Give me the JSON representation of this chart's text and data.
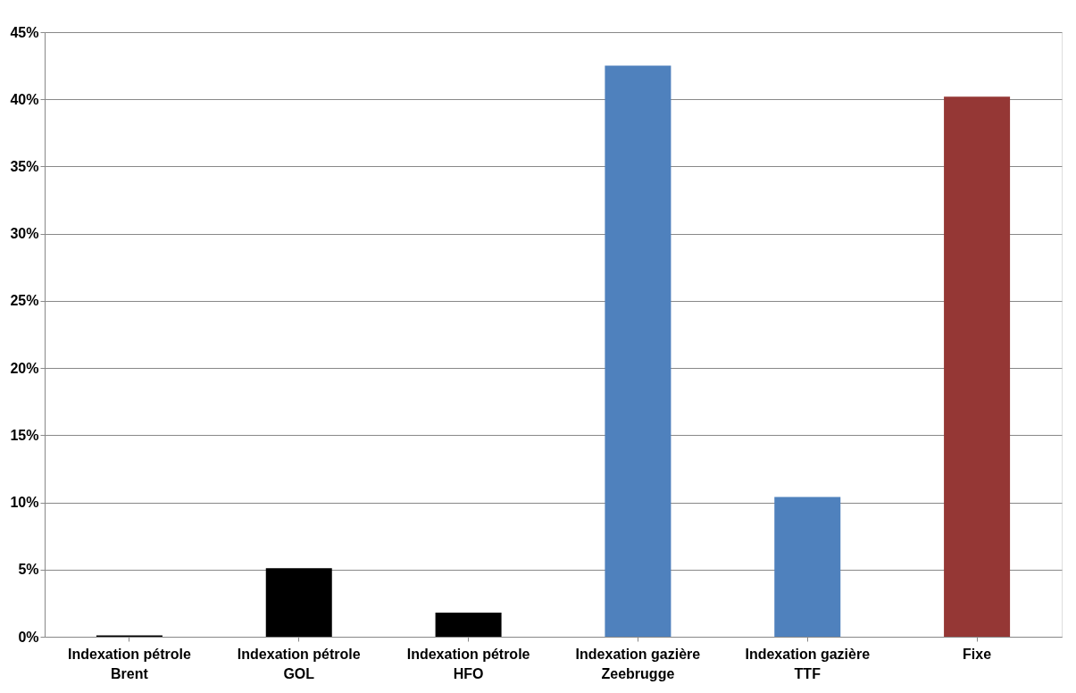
{
  "chart_data": {
    "type": "bar",
    "categories": [
      "Indexation pétrole\nBrent",
      "Indexation pétrole\nGOL",
      "Indexation pétrole\nHFO",
      "Indexation gazière\nZeebrugge",
      "Indexation gazière\nTTF",
      "Fixe"
    ],
    "values": [
      0.1,
      5.1,
      1.8,
      42.5,
      10.4,
      40.2
    ],
    "colors": [
      "#000000",
      "#000000",
      "#000000",
      "#4f81bd",
      "#4f81bd",
      "#953735"
    ],
    "ylim": [
      0,
      45
    ],
    "yticks": [
      {
        "value": 0,
        "label": "0%"
      },
      {
        "value": 5,
        "label": "5%"
      },
      {
        "value": 10,
        "label": "10%"
      },
      {
        "value": 15,
        "label": "15%"
      },
      {
        "value": 20,
        "label": "20%"
      },
      {
        "value": 25,
        "label": "25%"
      },
      {
        "value": 30,
        "label": "30%"
      },
      {
        "value": 35,
        "label": "35%"
      },
      {
        "value": 40,
        "label": "40%"
      },
      {
        "value": 45,
        "label": "45%"
      }
    ],
    "grid": "y"
  }
}
